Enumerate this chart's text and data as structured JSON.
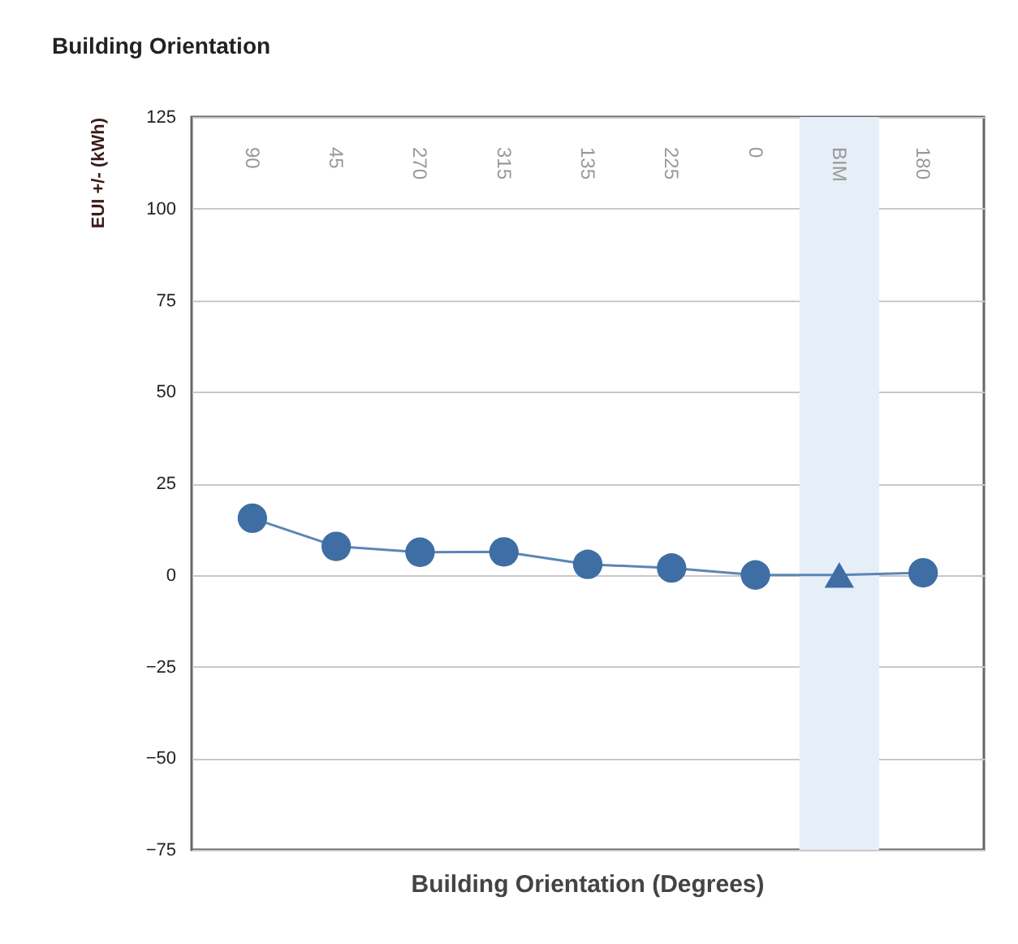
{
  "chart_data": {
    "type": "line",
    "title": "Building Orientation",
    "xlabel": "Building Orientation (Degrees)",
    "ylabel": "EUI +/- (kWh)",
    "categories": [
      "90",
      "45",
      "270",
      "315",
      "135",
      "225",
      "0",
      "BIM",
      "180"
    ],
    "series": [
      {
        "marker": "none",
        "color": "#5b86b5",
        "values": [
          15.5,
          7.8,
          6.2,
          6.3,
          2.9,
          1.9,
          0,
          0,
          0.6
        ]
      },
      {
        "type": "scatter",
        "marker": "circle",
        "color": "#3e6ea3",
        "values": [
          15.5,
          7.8,
          6.2,
          6.3,
          2.9,
          1.9,
          0,
          null,
          0.6
        ]
      },
      {
        "type": "scatter",
        "marker": "triangle",
        "color": "#3e6ea3",
        "values": [
          null,
          null,
          null,
          null,
          null,
          null,
          null,
          0,
          null
        ]
      }
    ],
    "ylim": [
      -75,
      125
    ],
    "yticks": [
      -75,
      -50,
      -25,
      0,
      25,
      50,
      75,
      100,
      125
    ],
    "grid": "y",
    "bands": [
      {
        "axis": "x",
        "from": "BIM",
        "to": "BIM",
        "color": "#e6eef7"
      }
    ]
  }
}
